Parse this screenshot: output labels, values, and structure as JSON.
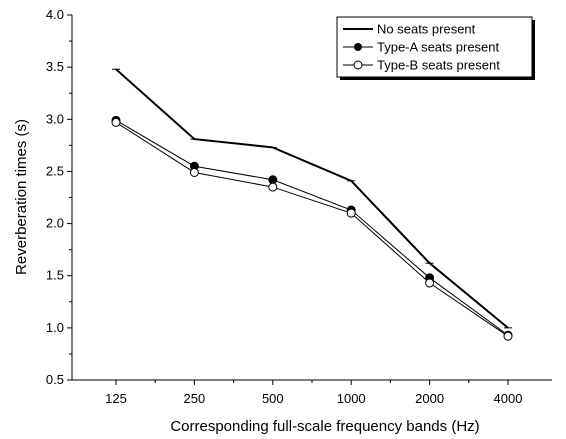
{
  "chart_data": {
    "type": "line",
    "title": "",
    "xlabel": "Corresponding full-scale frequency bands (Hz)",
    "ylabel": "Reverberation times (s)",
    "categories": [
      "125",
      "250",
      "500",
      "1000",
      "2000",
      "4000"
    ],
    "ylim": [
      0.5,
      4.0
    ],
    "y_ticks": [
      "0.5",
      "1.0",
      "1.5",
      "2.0",
      "2.5",
      "3.0",
      "3.5",
      "4.0"
    ],
    "grid": false,
    "legend_position": "top-right",
    "series": [
      {
        "name": "No seats present",
        "marker": "none",
        "values": [
          3.48,
          2.81,
          2.73,
          2.41,
          1.62,
          1.0
        ]
      },
      {
        "name": "Type-A seats present",
        "marker": "filled-circle",
        "values": [
          2.99,
          2.55,
          2.42,
          2.13,
          1.48,
          0.93
        ]
      },
      {
        "name": "Type-B seats present",
        "marker": "open-circle",
        "values": [
          2.97,
          2.49,
          2.35,
          2.1,
          1.43,
          0.92
        ]
      }
    ],
    "colors": {
      "line": "#000000",
      "background": "#ffffff"
    }
  }
}
